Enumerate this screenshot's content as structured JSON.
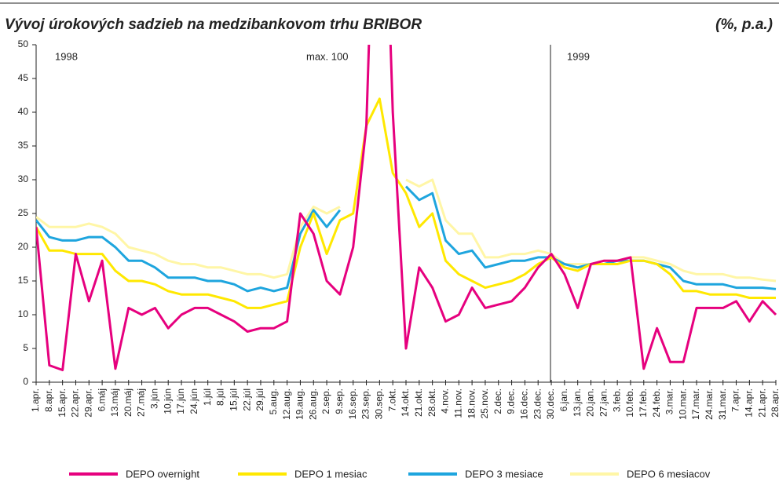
{
  "chart_data": {
    "type": "line",
    "title": "Vývoj úrokových sadzieb na medzibankovom trhu BRIBOR",
    "subtitle": "(%, p.a.)",
    "annotations": [
      "1998",
      "max. 100",
      "1999"
    ],
    "categories": [
      "1.apr.",
      "8.apr.",
      "15.apr.",
      "22.apr.",
      "29.apr.",
      "6.máj",
      "13.máj",
      "20.máj",
      "27.máj",
      "3.jún",
      "10.jún",
      "17.jún",
      "24.jún",
      "1.júl",
      "8.júl",
      "15.júl",
      "22.júl",
      "29.júl",
      "5.aug.",
      "12.aug.",
      "19.aug.",
      "26.aug.",
      "2.sep.",
      "9.sep.",
      "16.sep.",
      "23.sep.",
      "30.sep.",
      "7.okt.",
      "14.okt.",
      "21.okt.",
      "28.okt.",
      "4.nov.",
      "11.nov.",
      "18.nov.",
      "25.nov.",
      "2.dec.",
      "9.dec.",
      "16.dec.",
      "23.dec.",
      "30.dec.",
      "6.jan.",
      "13.jan.",
      "20.jan.",
      "27.jan.",
      "3.feb.",
      "10.feb.",
      "17.feb.",
      "24.feb.",
      "3.mar.",
      "10.mar.",
      "17.mar.",
      "24.mar.",
      "31.mar.",
      "7.apr.",
      "14.apr.",
      "21.apr.",
      "28.apr."
    ],
    "series": [
      {
        "name": "DEPO overnight",
        "color": "#e6007e",
        "values": [
          23,
          2.5,
          1.8,
          19,
          12,
          18,
          2,
          11,
          10,
          11,
          8,
          10,
          11,
          11,
          10,
          9,
          7.5,
          8,
          8,
          9,
          25,
          22,
          15,
          13,
          20,
          38,
          100,
          40,
          5,
          17,
          14,
          9,
          10,
          14,
          11,
          11.5,
          12,
          14,
          17,
          19,
          16,
          11,
          17.5,
          18,
          18,
          18.5,
          2,
          8,
          3,
          3,
          11,
          11,
          11,
          12,
          9,
          12,
          10
        ]
      },
      {
        "name": "DEPO 1 mesiac",
        "color": "#ffe800",
        "values": [
          23,
          19.5,
          19.5,
          19,
          19,
          19,
          16.5,
          15,
          15,
          14.5,
          13.5,
          13,
          13,
          13,
          12.5,
          12,
          11,
          11,
          11.5,
          12,
          20,
          25,
          19,
          24,
          25,
          38,
          42,
          31,
          28,
          23,
          25,
          18,
          16,
          15,
          14,
          14.5,
          15,
          16,
          17.5,
          18.5,
          17,
          16.5,
          17.5,
          17.5,
          17.5,
          18,
          18,
          17.5,
          16,
          13.5,
          13.5,
          13,
          13,
          13,
          12.5,
          12.5,
          12.5
        ]
      },
      {
        "name": "DEPO 3 mesiace",
        "color": "#1ea5de",
        "values": [
          24,
          21.5,
          21,
          21,
          21.5,
          21.5,
          20,
          18,
          18,
          17,
          15.5,
          15.5,
          15.5,
          15,
          15,
          14.5,
          13.5,
          14,
          13.5,
          14,
          22,
          25.5,
          23,
          25.5,
          null,
          null,
          null,
          null,
          29,
          27,
          28,
          21,
          19,
          19.5,
          17,
          17.5,
          18,
          18,
          18.5,
          18.5,
          17.5,
          17,
          17.5,
          17.5,
          18,
          18,
          18,
          17.5,
          17,
          15,
          14.5,
          14.5,
          14.5,
          14,
          14,
          14,
          13.8
        ]
      },
      {
        "name": "DEPO 6 mesiacov",
        "color": "#fff6a6",
        "values": [
          24.5,
          23,
          23,
          23,
          23.5,
          23,
          22,
          20,
          19.5,
          19,
          18,
          17.5,
          17.5,
          17,
          17,
          16.5,
          16,
          16,
          15.5,
          16,
          23,
          26,
          25,
          26,
          null,
          null,
          null,
          null,
          30,
          29,
          30,
          24,
          22,
          22,
          18.5,
          18.5,
          19,
          19,
          19.5,
          19,
          17.5,
          17.5,
          17.5,
          18,
          18,
          18.5,
          18.5,
          18,
          17.5,
          16.5,
          16,
          16,
          16,
          15.5,
          15.5,
          15.2,
          15
        ]
      }
    ],
    "ylim": [
      0,
      50
    ],
    "yticks": [
      0,
      5,
      10,
      15,
      20,
      25,
      30,
      35,
      40,
      45,
      50
    ],
    "grid": false
  }
}
